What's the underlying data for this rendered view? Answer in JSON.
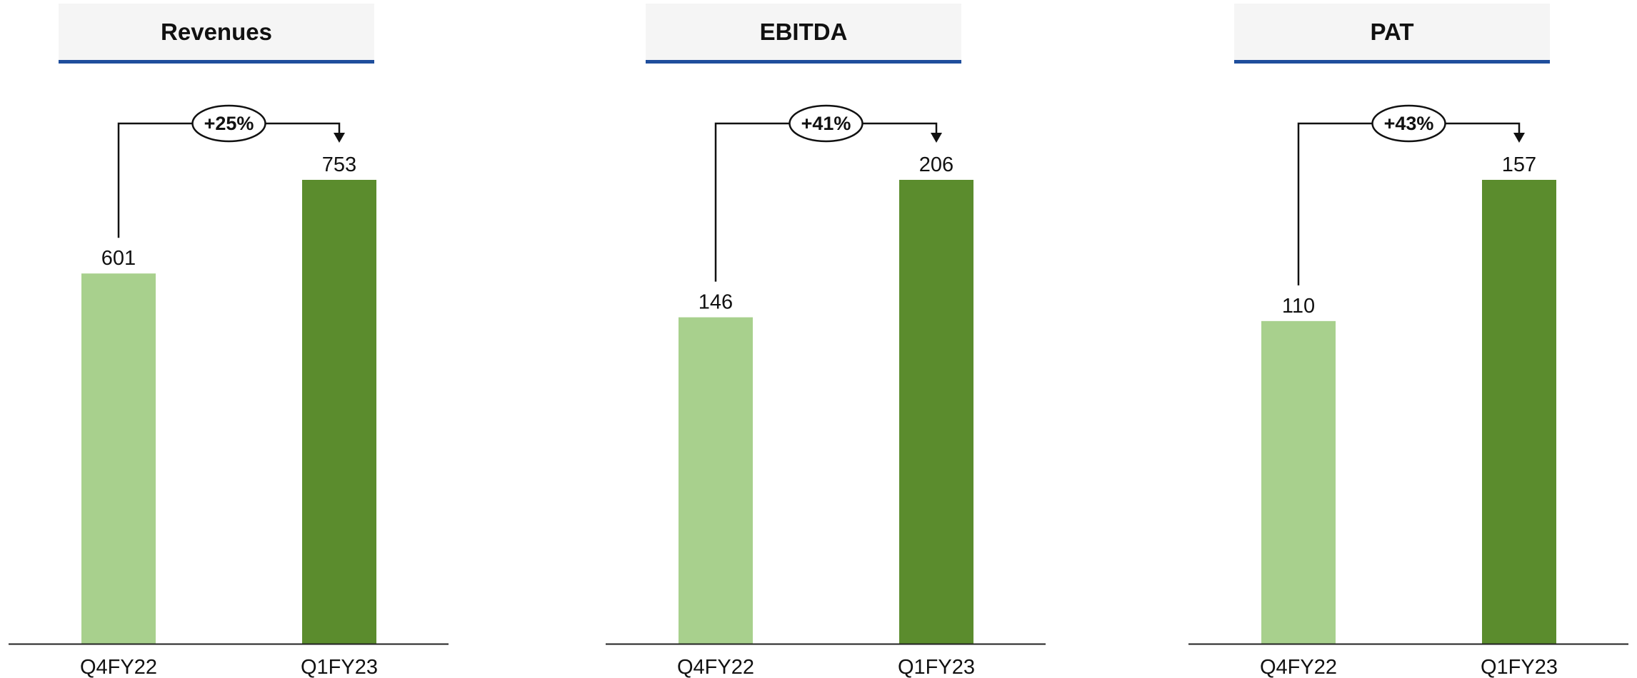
{
  "colors": {
    "prior_bar": "#a8d08d",
    "current_bar": "#5b8c2d",
    "title_underline": "#1f4e9c",
    "title_bg": "#f5f5f5"
  },
  "chart_data": [
    {
      "type": "bar",
      "title": "Revenues",
      "categories": [
        "Q4FY22",
        "Q1FY23"
      ],
      "values": [
        601,
        753
      ],
      "value_labels": [
        "601",
        "753"
      ],
      "growth_label": "+25%"
    },
    {
      "type": "bar",
      "title": "EBITDA",
      "categories": [
        "Q4FY22",
        "Q1FY23"
      ],
      "values": [
        146,
        206
      ],
      "value_labels": [
        "146",
        "206"
      ],
      "growth_label": "+41%"
    },
    {
      "type": "bar",
      "title": "PAT",
      "categories": [
        "Q4FY22",
        "Q1FY23"
      ],
      "values": [
        110,
        157
      ],
      "value_labels": [
        "110",
        "157"
      ],
      "growth_label": "+43%"
    }
  ]
}
